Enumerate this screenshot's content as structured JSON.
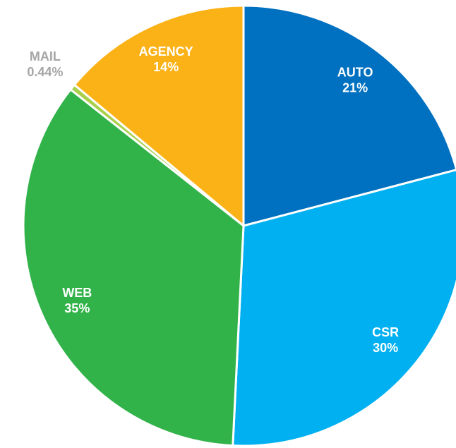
{
  "chart_data": {
    "type": "pie",
    "categories": [
      "AUTO",
      "CSR",
      "WEB",
      "MAIL",
      "AGENCY"
    ],
    "values": [
      21,
      30,
      35,
      0.44,
      14
    ],
    "value_labels": [
      "21%",
      "30%",
      "35%",
      "0.44%",
      "14%"
    ],
    "colors": [
      "#0070c0",
      "#00b0f0",
      "#32b34a",
      "#a9d04a",
      "#fbb217"
    ]
  }
}
